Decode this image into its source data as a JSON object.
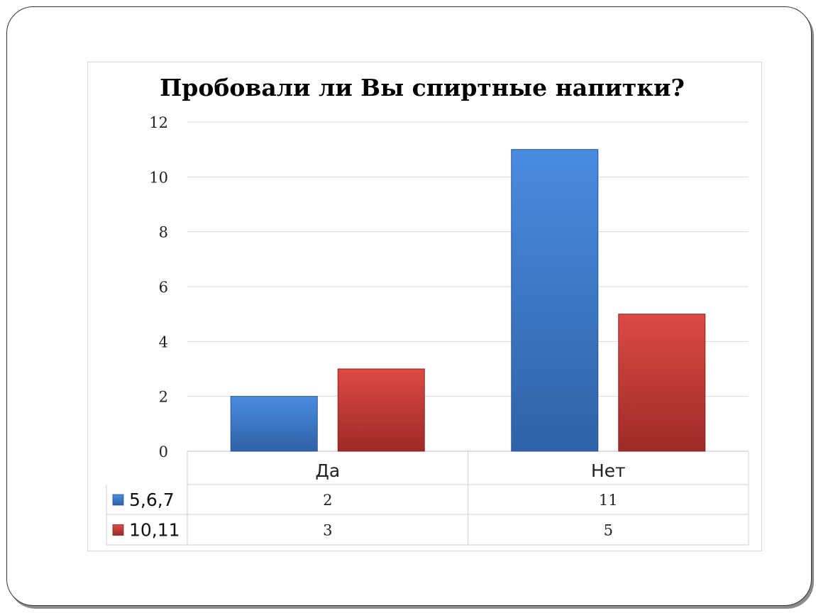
{
  "chart_data": {
    "type": "bar",
    "title": "Пробовали ли Вы спиртные напитки?",
    "xlabel": "",
    "ylabel": "",
    "categories": [
      "Да",
      "Нет"
    ],
    "series": [
      {
        "name": "5,6,7",
        "values": [
          2,
          11
        ],
        "color": "#3F7FCF"
      },
      {
        "name": "10,11",
        "values": [
          3,
          5
        ],
        "color": "#C8403C"
      }
    ],
    "ylim": [
      0,
      12
    ],
    "yticks": [
      0,
      2,
      4,
      6,
      8,
      10,
      12
    ],
    "grid": true,
    "legend": "data-table"
  }
}
